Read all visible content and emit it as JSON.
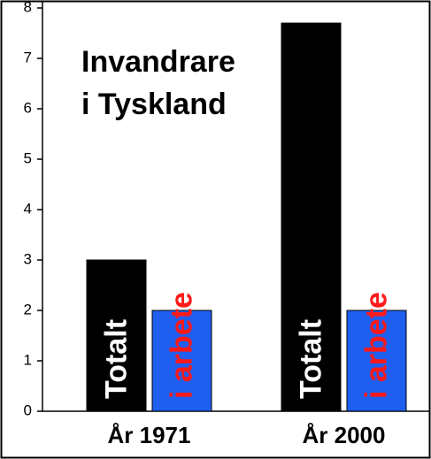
{
  "chart_data": {
    "type": "bar",
    "title": [
      "Invandrare",
      "i Tyskland"
    ],
    "categories": [
      "År 1971",
      "År 2000"
    ],
    "series": [
      {
        "name": "Totalt",
        "color": "#000000",
        "label_color": "#ffffff",
        "values": [
          3,
          7.7
        ]
      },
      {
        "name": "i arbete",
        "color": "#1f5ff0",
        "label_color": "#ff1a1a",
        "values": [
          2,
          2
        ]
      }
    ],
    "ylim": [
      0,
      8
    ],
    "yticks": [
      0,
      1,
      2,
      3,
      4,
      5,
      6,
      7,
      8
    ],
    "grid": false
  }
}
